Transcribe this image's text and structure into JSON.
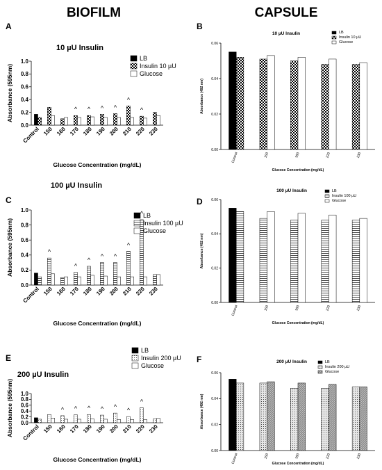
{
  "column_titles": [
    "BIOFILM",
    "CAPSULE"
  ],
  "chart_data": [
    {
      "panel": "A",
      "type": "bar",
      "title": "10 µU Insulin",
      "x_label": "Glucose Concentration (mg/dL)",
      "y_label": "Absorbance (595nm)",
      "categories": [
        "Control",
        "150",
        "160",
        "170",
        "180",
        "190",
        "200",
        "210",
        "220",
        "230"
      ],
      "series": [
        {
          "name": "LB",
          "color": "#000000",
          "values": [
            0.17,
            null,
            null,
            null,
            null,
            null,
            null,
            null,
            null,
            null
          ]
        },
        {
          "name": "Insulin 10 µU",
          "color": "#ffffff",
          "pattern": "checker",
          "values": [
            0.12,
            0.28,
            0.1,
            0.15,
            0.15,
            0.17,
            0.18,
            0.3,
            0.14,
            0.2
          ]
        },
        {
          "name": "Glucose",
          "color": "#ffffff",
          "values": [
            null,
            0.15,
            0.12,
            0.12,
            0.13,
            0.12,
            0.12,
            0.12,
            0.11,
            0.15
          ]
        }
      ],
      "significance": [
        null,
        null,
        null,
        "^",
        "^",
        "^",
        "^",
        "^",
        "^",
        null
      ],
      "ylim": [
        0,
        1.0
      ],
      "yticks": [
        {
          "value": 0,
          "label": "0.0"
        },
        0.2,
        0.4,
        0.6,
        0.8,
        {
          "value": 1.0,
          "label": "1.0"
        }
      ]
    },
    {
      "panel": "B",
      "type": "bar",
      "title": "10 µU Insulin",
      "x_label": "Glucose Concentration (mg/dL)",
      "y_label": "Absorbance (492 nm)",
      "categories": [
        "Control",
        "150",
        "180",
        "220",
        "230"
      ],
      "series": [
        {
          "name": "LB",
          "color": "#000000",
          "values": [
            0.055,
            null,
            null,
            null,
            null
          ]
        },
        {
          "name": "Insulin 10 µU",
          "color": "#ffffff",
          "pattern": "checker",
          "values": [
            0.052,
            0.051,
            0.05,
            0.048,
            0.048
          ]
        },
        {
          "name": "Glucose",
          "color": "#ffffff",
          "values": [
            null,
            0.053,
            0.052,
            0.051,
            0.049
          ]
        }
      ],
      "ylim": [
        0,
        0.06
      ],
      "yticks": [
        {
          "value": 0,
          "label": "0.00"
        },
        0.02,
        0.04,
        0.06
      ]
    },
    {
      "panel": "C",
      "type": "bar",
      "title": "100 µU Insulin",
      "x_label": "Glucose Concentration (mg/dL)",
      "y_label": "Absorbance (595nm)",
      "categories": [
        "Control",
        "150",
        "160",
        "170",
        "180",
        "190",
        "200",
        "210",
        "220",
        "230"
      ],
      "series": [
        {
          "name": "LB",
          "color": "#000000",
          "values": [
            0.16,
            null,
            null,
            null,
            null,
            null,
            null,
            null,
            null,
            null
          ]
        },
        {
          "name": "Insulin 100 µU",
          "color": "#ffffff",
          "pattern": "horizontal",
          "values": [
            0.11,
            0.36,
            0.1,
            0.17,
            0.25,
            0.3,
            0.3,
            0.45,
            0.87,
            0.14
          ]
        },
        {
          "name": "Glucose",
          "color": "#ffffff",
          "values": [
            null,
            0.15,
            0.11,
            0.11,
            0.13,
            0.12,
            0.11,
            0.11,
            0.11,
            0.14
          ]
        }
      ],
      "significance": [
        null,
        "^",
        null,
        "^",
        "^",
        "^",
        "^",
        "^",
        "^",
        null
      ],
      "ylim": [
        0,
        1.0
      ],
      "yticks": [
        {
          "value": 0,
          "label": "0.0"
        },
        0.2,
        0.4,
        0.6,
        0.8,
        {
          "value": 1.0,
          "label": "1.0"
        }
      ]
    },
    {
      "panel": "D",
      "type": "bar",
      "title": "100 µU Insulin",
      "x_label": "Glucose Concentration (mg/dL)",
      "y_label": "Absorbance (492 nm)",
      "categories": [
        "Control",
        "150",
        "180",
        "220",
        "230"
      ],
      "series": [
        {
          "name": "LB",
          "color": "#000000",
          "values": [
            0.055,
            null,
            null,
            null,
            null
          ]
        },
        {
          "name": "Insulin 100 µU",
          "color": "#ffffff",
          "pattern": "horizontal",
          "values": [
            0.053,
            0.049,
            0.048,
            0.048,
            0.048
          ]
        },
        {
          "name": "Glucose",
          "color": "#ffffff",
          "values": [
            null,
            0.053,
            0.052,
            0.051,
            0.049
          ]
        }
      ],
      "ylim": [
        0,
        0.06
      ],
      "yticks": [
        {
          "value": 0,
          "label": "0.00"
        },
        0.02,
        0.04,
        0.06
      ]
    },
    {
      "panel": "E",
      "type": "bar",
      "title": "200 µU Insulin",
      "x_label": "Glucose Concentration (mg/dL)",
      "y_label": "Absorbance (595nm)",
      "categories": [
        "Control",
        "150",
        "160",
        "170",
        "180",
        "190",
        "200",
        "210",
        "220",
        "230"
      ],
      "series": [
        {
          "name": "LB",
          "color": "#000000",
          "values": [
            0.17,
            null,
            null,
            null,
            null,
            null,
            null,
            null,
            null,
            null
          ]
        },
        {
          "name": "Insulin 200 µU",
          "color": "#ffffff",
          "pattern": "dots",
          "values": [
            0.12,
            0.28,
            0.24,
            0.27,
            0.28,
            0.26,
            0.33,
            0.21,
            0.51,
            0.13
          ]
        },
        {
          "name": "Glucose",
          "color": "#ffffff",
          "values": [
            null,
            0.16,
            0.12,
            0.12,
            0.13,
            0.12,
            0.11,
            0.11,
            0.11,
            0.15
          ]
        }
      ],
      "significance": [
        null,
        null,
        "^",
        "^",
        "^",
        "^",
        "^",
        "^",
        "^",
        null
      ],
      "ylim": [
        0,
        1.0
      ],
      "yticks": [
        {
          "value": 0,
          "label": "0.0"
        },
        0.2,
        0.4,
        0.6,
        0.8,
        {
          "value": 1.0,
          "label": "1.0"
        }
      ]
    },
    {
      "panel": "F",
      "type": "bar",
      "title": "200 µU Insulin",
      "x_label": "Glucose Concentration (mg/dL)",
      "y_label": "Absorbance (492 nm)",
      "categories": [
        "Control",
        "150",
        "180",
        "220",
        "230"
      ],
      "series": [
        {
          "name": "LB",
          "color": "#000000",
          "values": [
            0.055,
            null,
            null,
            null,
            null
          ]
        },
        {
          "name": "Insulin 200 µU",
          "color": "#e6e6e6",
          "pattern": "dots",
          "values": [
            0.052,
            0.052,
            0.048,
            0.048,
            0.049
          ]
        },
        {
          "name": "Glucose",
          "color": "#8c8c8c",
          "pattern": "diagonal",
          "values": [
            null,
            0.053,
            0.052,
            0.051,
            0.049
          ]
        }
      ],
      "ylim": [
        0,
        0.06
      ],
      "yticks": [
        {
          "value": 0,
          "label": "0.00"
        },
        0.02,
        0.04,
        0.06
      ]
    }
  ]
}
